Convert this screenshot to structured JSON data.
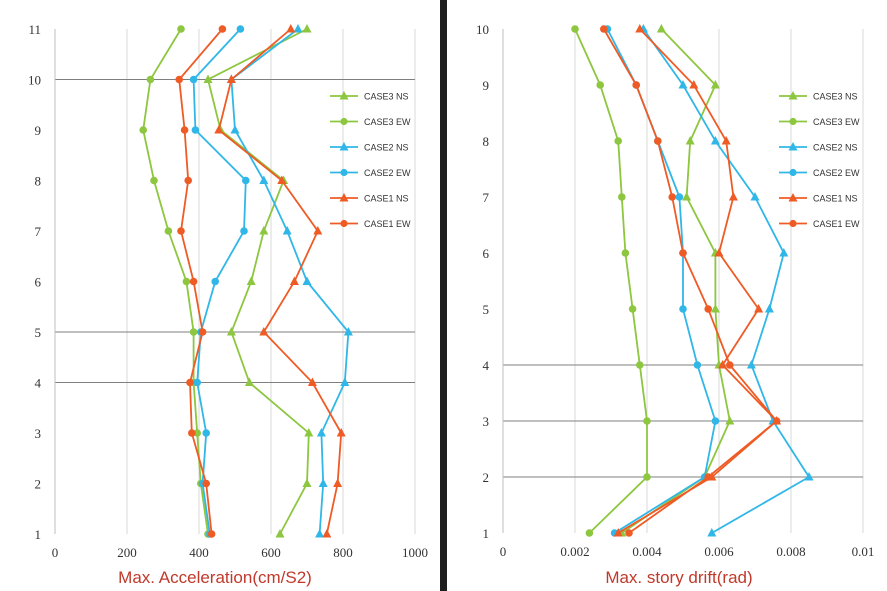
{
  "colors": {
    "CASE3": "#8dc63f",
    "CASE2": "#30b7e8",
    "CASE1": "#ef5b25",
    "hgrid": "#7f7f7f",
    "vgrid": "#d9d9d9"
  },
  "chart_data": [
    {
      "type": "line",
      "xlabel": "Max. Acceleration(cm/S2)",
      "ylabel": "",
      "xlim": [
        0,
        1000
      ],
      "ylim": [
        1,
        11
      ],
      "xticks": [
        "0",
        "200",
        "400",
        "600",
        "800",
        "1000"
      ],
      "yticks": [
        "1",
        "2",
        "3",
        "4",
        "5",
        "6",
        "7",
        "8",
        "9",
        "10",
        "11"
      ],
      "legend_position": "right",
      "series": [
        {
          "name": "CASE3 NS",
          "case": "CASE3",
          "marker": "triangle",
          "x": [
            625,
            700,
            705,
            540,
            490,
            545,
            580,
            635,
            460,
            425,
            700
          ],
          "y": [
            1,
            2,
            3,
            4,
            5,
            6,
            7,
            8,
            9,
            10,
            11
          ]
        },
        {
          "name": "CASE3 EW",
          "case": "CASE3",
          "marker": "circle",
          "x": [
            425,
            405,
            395,
            385,
            385,
            365,
            315,
            275,
            245,
            265,
            350
          ],
          "y": [
            1,
            2,
            3,
            4,
            5,
            6,
            7,
            8,
            9,
            10,
            11
          ]
        },
        {
          "name": "CASE2 NS",
          "case": "CASE2",
          "marker": "triangle",
          "x": [
            735,
            745,
            740,
            805,
            815,
            700,
            645,
            580,
            500,
            490,
            675
          ],
          "y": [
            1,
            2,
            3,
            4,
            5,
            6,
            7,
            8,
            9,
            10,
            11
          ]
        },
        {
          "name": "CASE2 EW",
          "case": "CASE2",
          "marker": "circle",
          "x": [
            430,
            410,
            420,
            395,
            405,
            445,
            525,
            530,
            390,
            385,
            515
          ],
          "y": [
            1,
            2,
            3,
            4,
            5,
            6,
            7,
            8,
            9,
            10,
            11
          ]
        },
        {
          "name": "CASE1 NS",
          "case": "CASE1",
          "marker": "triangle",
          "x": [
            755,
            785,
            795,
            715,
            580,
            665,
            730,
            630,
            455,
            490,
            655
          ],
          "y": [
            1,
            2,
            3,
            4,
            5,
            6,
            7,
            8,
            9,
            10,
            11
          ]
        },
        {
          "name": "CASE1 EW",
          "case": "CASE1",
          "marker": "circle",
          "x": [
            435,
            420,
            380,
            375,
            410,
            385,
            350,
            370,
            360,
            345,
            465
          ],
          "y": [
            1,
            2,
            3,
            4,
            5,
            6,
            7,
            8,
            9,
            10,
            11
          ]
        }
      ]
    },
    {
      "type": "line",
      "xlabel": "Max. story drift(rad)",
      "ylabel": "",
      "xlim": [
        0,
        0.01
      ],
      "ylim": [
        1,
        10
      ],
      "xticks": [
        "0",
        "0.002",
        "0.004",
        "0.006",
        "0.008",
        "0.01"
      ],
      "yticks": [
        "1",
        "2",
        "3",
        "4",
        "5",
        "6",
        "7",
        "8",
        "9",
        "10"
      ],
      "legend_position": "right",
      "series": [
        {
          "name": "CASE3 NS",
          "case": "CASE3",
          "marker": "triangle",
          "x": [
            0.0033,
            0.0056,
            0.0063,
            0.006,
            0.0059,
            0.0059,
            0.0051,
            0.0052,
            0.0059,
            0.0044
          ],
          "y": [
            1,
            2,
            3,
            4,
            5,
            6,
            7,
            8,
            9,
            10
          ]
        },
        {
          "name": "CASE3 EW",
          "case": "CASE3",
          "marker": "circle",
          "x": [
            0.0024,
            0.004,
            0.004,
            0.0038,
            0.0036,
            0.0034,
            0.0033,
            0.0032,
            0.0027,
            0.002
          ],
          "y": [
            1,
            2,
            3,
            4,
            5,
            6,
            7,
            8,
            9,
            10
          ]
        },
        {
          "name": "CASE2 NS",
          "case": "CASE2",
          "marker": "triangle",
          "x": [
            0.0058,
            0.0085,
            0.0075,
            0.0069,
            0.0074,
            0.0078,
            0.007,
            0.0059,
            0.005,
            0.0039
          ],
          "y": [
            1,
            2,
            3,
            4,
            5,
            6,
            7,
            8,
            9,
            10
          ]
        },
        {
          "name": "CASE2 EW",
          "case": "CASE2",
          "marker": "circle",
          "x": [
            0.0031,
            0.0056,
            0.0059,
            0.0054,
            0.005,
            0.005,
            0.0049,
            0.0043,
            0.0037,
            0.0029
          ],
          "y": [
            1,
            2,
            3,
            4,
            5,
            6,
            7,
            8,
            9,
            10
          ]
        },
        {
          "name": "CASE1 NS",
          "case": "CASE1",
          "marker": "triangle",
          "x": [
            0.0032,
            0.0058,
            0.0076,
            0.0061,
            0.0071,
            0.006,
            0.0064,
            0.0062,
            0.0053,
            0.0038
          ],
          "y": [
            1,
            2,
            3,
            4,
            5,
            6,
            7,
            8,
            9,
            10
          ]
        },
        {
          "name": "CASE1 EW",
          "case": "CASE1",
          "marker": "circle",
          "x": [
            0.0035,
            0.0057,
            0.0076,
            0.0063,
            0.0057,
            0.005,
            0.0047,
            0.0043,
            0.0037,
            0.0028
          ],
          "y": [
            1,
            2,
            3,
            4,
            5,
            6,
            7,
            8,
            9,
            10
          ]
        }
      ]
    }
  ],
  "legend_labels": [
    "CASE3 NS",
    "CASE3 EW",
    "CASE2 NS",
    "CASE2 EW",
    "CASE1 NS",
    "CASE1 EW"
  ]
}
